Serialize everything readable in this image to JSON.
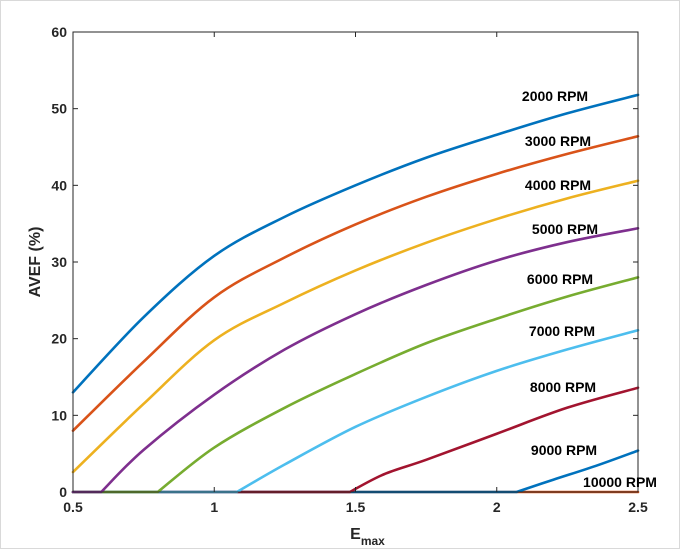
{
  "chart_data": {
    "type": "line",
    "title": "",
    "xlabel": "E",
    "xlabel_subscript": "max",
    "ylabel": "AVEF (%)",
    "xlim": [
      0.5,
      2.5
    ],
    "ylim": [
      0,
      60
    ],
    "xticks": [
      "0.5",
      "1",
      "1.5",
      "2",
      "2.5"
    ],
    "yticks": [
      "0",
      "10",
      "20",
      "30",
      "40",
      "50",
      "60"
    ],
    "grid": false,
    "legend": "none",
    "series": [
      {
        "name": "2000 RPM",
        "color": "#0072BD",
        "x": [
          0.5,
          0.75,
          1.0,
          1.25,
          1.5,
          1.75,
          2.0,
          2.25,
          2.5
        ],
        "y": [
          13.0,
          22.8,
          30.8,
          35.9,
          40.0,
          43.6,
          46.6,
          49.4,
          51.8
        ]
      },
      {
        "name": "3000 RPM",
        "color": "#D95319",
        "x": [
          0.5,
          0.75,
          1.0,
          1.25,
          1.5,
          1.75,
          2.0,
          2.25,
          2.5
        ],
        "y": [
          8.0,
          17.0,
          25.4,
          30.6,
          34.9,
          38.5,
          41.5,
          44.1,
          46.4
        ]
      },
      {
        "name": "4000 RPM",
        "color": "#EDB120",
        "x": [
          0.5,
          0.75,
          1.0,
          1.25,
          1.5,
          1.75,
          2.0,
          2.25,
          2.5
        ],
        "y": [
          2.6,
          11.5,
          19.8,
          24.7,
          28.9,
          32.5,
          35.6,
          38.3,
          40.6
        ]
      },
      {
        "name": "5000 RPM",
        "color": "#7E2F8E",
        "x": [
          0.5,
          0.6,
          0.75,
          1.0,
          1.25,
          1.5,
          1.75,
          2.0,
          2.25,
          2.5
        ],
        "y": [
          0,
          0,
          5.5,
          12.7,
          18.6,
          23.2,
          27.0,
          30.2,
          32.6,
          34.4
        ]
      },
      {
        "name": "6000 RPM",
        "color": "#77AC30",
        "x": [
          0.5,
          0.8,
          1.0,
          1.25,
          1.5,
          1.75,
          2.0,
          2.25,
          2.5
        ],
        "y": [
          0,
          0,
          5.8,
          11.0,
          15.4,
          19.4,
          22.6,
          25.5,
          28.0
        ]
      },
      {
        "name": "7000 RPM",
        "color": "#4DBEEE",
        "x": [
          0.5,
          1.08,
          1.25,
          1.5,
          1.75,
          2.0,
          2.25,
          2.5
        ],
        "y": [
          0,
          0,
          3.6,
          8.5,
          12.4,
          15.8,
          18.6,
          21.1
        ]
      },
      {
        "name": "8000 RPM",
        "color": "#A2142F",
        "x": [
          0.5,
          1.48,
          1.6,
          1.75,
          2.0,
          2.25,
          2.5
        ],
        "y": [
          0,
          0,
          2.3,
          4.2,
          7.6,
          11.0,
          13.6
        ]
      },
      {
        "name": "9000 RPM",
        "color": "#0072BD",
        "x": [
          0.5,
          2.07,
          2.2,
          2.35,
          2.5
        ],
        "y": [
          0,
          0,
          1.6,
          3.4,
          5.4
        ]
      },
      {
        "name": "10000 RPM",
        "color": "#D95319",
        "x": [
          0.5,
          2.5
        ],
        "y": [
          0,
          0
        ]
      }
    ]
  }
}
